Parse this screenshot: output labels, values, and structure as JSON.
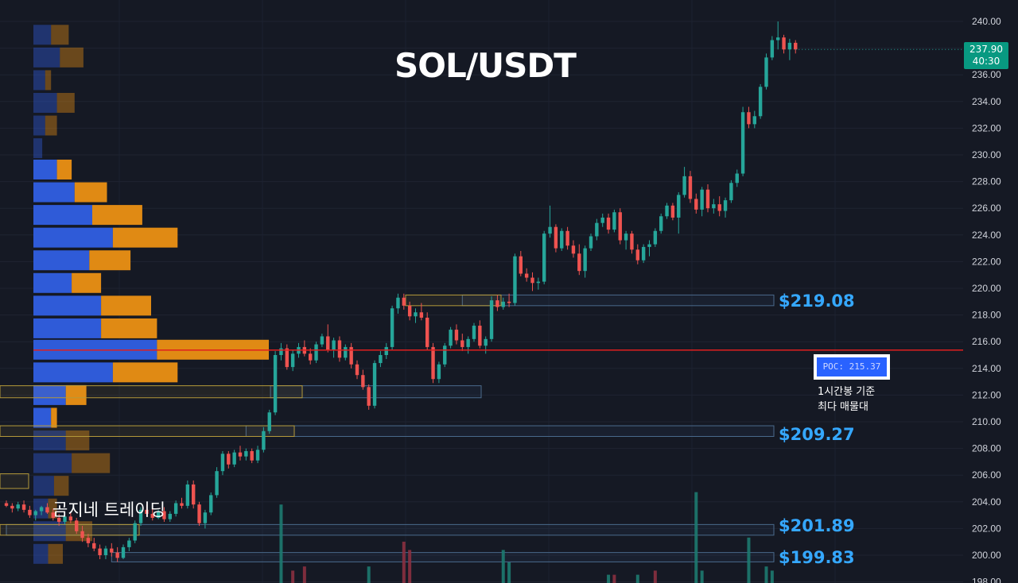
{
  "title": "SOL/USDT",
  "watermark": "곰지네 트레이딩",
  "price_tag": {
    "price": "237.90",
    "timer": "40:30"
  },
  "poc": {
    "label": "POC: 215.37",
    "caption": "1시간봉 기준\n최다 매물대"
  },
  "levels": [
    {
      "label": "$219.08"
    },
    {
      "label": "$209.27"
    },
    {
      "label": "$201.89"
    },
    {
      "label": "$199.83"
    }
  ],
  "colors": {
    "background": "#151924",
    "up": "#26a69a",
    "down": "#ef5350",
    "poc_line": "#e01e1e",
    "level_label": "#35a8ff",
    "vp_blue": "#2f5bd8",
    "vp_orange": "#e08a14",
    "axis_text": "#d1d4dc"
  },
  "chart_data": {
    "type": "candlestick",
    "title": "SOL/USDT",
    "ylim": [
      198,
      240.8
    ],
    "yticks": [
      198.0,
      200.0,
      202.0,
      204.0,
      206.0,
      208.0,
      210.0,
      212.0,
      214.0,
      216.0,
      218.0,
      220.0,
      222.0,
      224.0,
      226.0,
      228.0,
      230.0,
      232.0,
      234.0,
      236.0,
      238.0,
      240.0
    ],
    "ytick_labels": [
      "198.00",
      "200.00",
      "202.00",
      "204.00",
      "206.00",
      "208.00",
      "210.00",
      "212.00",
      "214.00",
      "216.00",
      "218.00",
      "220.00",
      "222.00",
      "224.00",
      "226.00",
      "228.00",
      "230.00",
      "232.00",
      "234.00",
      "236.00",
      "238.00",
      "240.00"
    ],
    "last_price": 237.9,
    "poc_price": 215.37,
    "levels": [
      219.08,
      209.27,
      201.89,
      199.83
    ],
    "level_zones": [
      {
        "low": 218.7,
        "high": 219.5,
        "from_candle": 78,
        "extended": true
      },
      {
        "low": 211.8,
        "high": 212.7,
        "from_candle": 46,
        "extended": false
      },
      {
        "low": 208.9,
        "high": 209.7,
        "from_candle": 41,
        "extended": true
      },
      {
        "low": 201.5,
        "high": 202.3,
        "from_candle": 0,
        "extended": true
      },
      {
        "low": 199.5,
        "high": 200.2,
        "from_candle": 18,
        "extended": true
      }
    ],
    "candles": [
      [
        203.9,
        204.1,
        203.6,
        203.7
      ],
      [
        203.7,
        203.9,
        203.2,
        203.5
      ],
      [
        203.5,
        204.0,
        203.3,
        203.8
      ],
      [
        203.8,
        204.1,
        203.2,
        203.4
      ],
      [
        203.4,
        203.7,
        202.8,
        203.0
      ],
      [
        203.0,
        203.4,
        202.6,
        203.3
      ],
      [
        203.3,
        203.7,
        203.0,
        203.6
      ],
      [
        203.6,
        203.9,
        203.1,
        203.2
      ],
      [
        203.2,
        203.5,
        202.6,
        202.8
      ],
      [
        202.8,
        203.1,
        202.2,
        202.5
      ],
      [
        202.5,
        203.0,
        202.3,
        202.9
      ],
      [
        202.9,
        203.2,
        202.4,
        202.6
      ],
      [
        202.6,
        202.8,
        201.6,
        201.8
      ],
      [
        201.8,
        202.2,
        201.0,
        201.3
      ],
      [
        201.3,
        201.6,
        200.6,
        200.9
      ],
      [
        200.9,
        201.3,
        200.3,
        200.5
      ],
      [
        200.5,
        200.8,
        199.7,
        200.0
      ],
      [
        200.0,
        200.7,
        199.7,
        200.5
      ],
      [
        200.5,
        200.9,
        199.9,
        200.2
      ],
      [
        200.2,
        200.6,
        199.5,
        199.8
      ],
      [
        199.8,
        200.8,
        199.7,
        200.6
      ],
      [
        200.6,
        201.3,
        200.3,
        201.1
      ],
      [
        201.1,
        202.6,
        200.9,
        202.4
      ],
      [
        202.4,
        203.6,
        202.2,
        203.4
      ],
      [
        203.4,
        203.8,
        202.9,
        203.1
      ],
      [
        203.1,
        203.5,
        202.6,
        202.8
      ],
      [
        202.8,
        203.4,
        202.7,
        203.3
      ],
      [
        203.3,
        203.6,
        202.5,
        202.7
      ],
      [
        202.7,
        203.3,
        202.5,
        203.1
      ],
      [
        203.1,
        204.1,
        202.9,
        203.9
      ],
      [
        203.9,
        204.3,
        203.5,
        203.7
      ],
      [
        203.7,
        205.6,
        203.5,
        205.3
      ],
      [
        205.3,
        205.6,
        203.5,
        203.8
      ],
      [
        203.8,
        204.0,
        202.2,
        202.4
      ],
      [
        202.4,
        203.4,
        202.0,
        203.2
      ],
      [
        203.2,
        204.7,
        203.0,
        204.5
      ],
      [
        204.5,
        206.6,
        204.3,
        206.3
      ],
      [
        206.3,
        207.8,
        206.0,
        207.6
      ],
      [
        207.6,
        207.8,
        206.5,
        206.8
      ],
      [
        206.8,
        207.9,
        206.6,
        207.7
      ],
      [
        207.7,
        208.2,
        207.1,
        207.4
      ],
      [
        207.4,
        208.0,
        207.1,
        207.8
      ],
      [
        207.8,
        208.0,
        206.9,
        207.1
      ],
      [
        207.1,
        208.2,
        206.9,
        207.9
      ],
      [
        207.9,
        209.6,
        207.7,
        209.3
      ],
      [
        209.3,
        210.9,
        209.1,
        210.7
      ],
      [
        210.7,
        215.3,
        210.5,
        215.0
      ],
      [
        215.0,
        215.9,
        214.6,
        215.5
      ],
      [
        215.5,
        215.8,
        213.9,
        214.1
      ],
      [
        214.1,
        215.4,
        213.8,
        215.1
      ],
      [
        215.1,
        215.9,
        214.8,
        215.6
      ],
      [
        215.6,
        216.1,
        214.9,
        215.1
      ],
      [
        215.1,
        215.5,
        214.3,
        214.6
      ],
      [
        214.6,
        216.0,
        214.4,
        215.8
      ],
      [
        215.8,
        216.6,
        215.6,
        216.4
      ],
      [
        216.4,
        217.3,
        215.2,
        215.4
      ],
      [
        215.4,
        216.3,
        214.8,
        216.1
      ],
      [
        216.1,
        216.4,
        214.5,
        214.8
      ],
      [
        214.8,
        215.8,
        214.6,
        215.6
      ],
      [
        215.6,
        215.9,
        214.0,
        214.3
      ],
      [
        214.3,
        214.6,
        213.2,
        213.5
      ],
      [
        213.5,
        213.9,
        212.4,
        212.6
      ],
      [
        212.6,
        212.8,
        210.9,
        211.2
      ],
      [
        211.2,
        214.6,
        211.0,
        214.4
      ],
      [
        214.4,
        215.3,
        214.1,
        215.0
      ],
      [
        215.0,
        215.9,
        214.7,
        215.6
      ],
      [
        215.6,
        218.7,
        215.4,
        218.5
      ],
      [
        218.5,
        219.6,
        218.1,
        219.3
      ],
      [
        219.3,
        219.6,
        218.4,
        218.7
      ],
      [
        218.7,
        219.0,
        217.6,
        217.9
      ],
      [
        217.9,
        218.5,
        217.4,
        218.2
      ],
      [
        218.2,
        218.9,
        217.6,
        217.8
      ],
      [
        217.8,
        218.2,
        215.4,
        215.6
      ],
      [
        215.6,
        215.9,
        212.9,
        213.2
      ],
      [
        213.2,
        214.5,
        212.9,
        214.3
      ],
      [
        214.3,
        215.9,
        214.1,
        215.7
      ],
      [
        215.7,
        217.1,
        215.5,
        216.9
      ],
      [
        216.9,
        217.3,
        215.8,
        216.1
      ],
      [
        216.1,
        216.6,
        215.3,
        215.6
      ],
      [
        215.6,
        216.4,
        215.1,
        216.2
      ],
      [
        216.2,
        217.4,
        216.0,
        217.2
      ],
      [
        217.2,
        217.6,
        215.5,
        215.7
      ],
      [
        215.7,
        216.4,
        215.1,
        216.2
      ],
      [
        216.2,
        219.4,
        216.0,
        219.1
      ],
      [
        219.1,
        219.5,
        218.3,
        218.6
      ],
      [
        218.6,
        219.3,
        218.4,
        219.0
      ],
      [
        219.0,
        219.6,
        218.6,
        218.9
      ],
      [
        218.9,
        222.6,
        218.7,
        222.4
      ],
      [
        222.4,
        222.8,
        220.9,
        221.1
      ],
      [
        221.1,
        221.5,
        220.5,
        220.8
      ],
      [
        220.8,
        221.2,
        219.8,
        220.4
      ],
      [
        220.4,
        220.8,
        219.9,
        220.5
      ],
      [
        220.5,
        224.3,
        220.3,
        224.1
      ],
      [
        224.1,
        226.2,
        223.8,
        224.6
      ],
      [
        224.6,
        224.8,
        222.7,
        223.0
      ],
      [
        223.0,
        224.5,
        222.8,
        224.3
      ],
      [
        224.3,
        224.6,
        222.9,
        223.2
      ],
      [
        223.2,
        223.6,
        222.3,
        222.6
      ],
      [
        222.6,
        223.3,
        221.0,
        221.3
      ],
      [
        221.3,
        223.2,
        220.8,
        223.0
      ],
      [
        223.0,
        224.1,
        222.8,
        223.9
      ],
      [
        223.9,
        225.2,
        223.6,
        224.9
      ],
      [
        224.9,
        225.6,
        224.6,
        225.3
      ],
      [
        225.3,
        225.6,
        224.1,
        224.4
      ],
      [
        224.4,
        225.9,
        224.2,
        225.7
      ],
      [
        225.7,
        226.0,
        223.3,
        223.6
      ],
      [
        223.6,
        224.3,
        222.9,
        224.1
      ],
      [
        224.1,
        224.3,
        222.6,
        222.9
      ],
      [
        222.9,
        223.3,
        221.8,
        222.1
      ],
      [
        222.1,
        223.3,
        221.9,
        223.1
      ],
      [
        223.1,
        223.6,
        222.4,
        223.3
      ],
      [
        223.3,
        224.5,
        223.1,
        224.3
      ],
      [
        224.3,
        225.6,
        224.1,
        225.4
      ],
      [
        225.4,
        226.4,
        225.2,
        226.2
      ],
      [
        226.2,
        226.4,
        225.1,
        225.3
      ],
      [
        225.3,
        227.2,
        224.1,
        227.0
      ],
      [
        227.0,
        229.1,
        226.8,
        228.4
      ],
      [
        228.4,
        228.8,
        226.4,
        226.7
      ],
      [
        226.7,
        227.1,
        225.6,
        225.9
      ],
      [
        225.9,
        227.6,
        225.4,
        227.4
      ],
      [
        227.4,
        227.8,
        225.7,
        226.0
      ],
      [
        226.0,
        226.7,
        225.6,
        226.3
      ],
      [
        226.3,
        226.9,
        225.4,
        225.8
      ],
      [
        225.8,
        226.8,
        225.3,
        226.6
      ],
      [
        226.6,
        228.1,
        226.4,
        227.9
      ],
      [
        227.9,
        228.9,
        227.6,
        228.6
      ],
      [
        228.6,
        233.6,
        228.4,
        233.2
      ],
      [
        233.2,
        233.6,
        232.0,
        232.3
      ],
      [
        232.3,
        233.3,
        232.0,
        232.9
      ],
      [
        232.9,
        235.3,
        232.7,
        235.1
      ],
      [
        235.1,
        237.6,
        234.9,
        237.3
      ],
      [
        237.3,
        238.9,
        237.1,
        238.6
      ],
      [
        238.6,
        240.0,
        237.9,
        238.8
      ],
      [
        238.8,
        239.0,
        237.6,
        237.9
      ],
      [
        237.9,
        238.7,
        237.1,
        238.4
      ],
      [
        238.4,
        238.6,
        237.6,
        237.9
      ]
    ],
    "volume_spikes": [
      {
        "candle": 47,
        "volume": 19,
        "dir": "up"
      },
      {
        "candle": 49,
        "volume": 3,
        "dir": "down"
      },
      {
        "candle": 51,
        "volume": 4,
        "dir": "down"
      },
      {
        "candle": 62,
        "volume": 4,
        "dir": "up"
      },
      {
        "candle": 68,
        "volume": 10,
        "dir": "down"
      },
      {
        "candle": 69,
        "volume": 8,
        "dir": "down"
      },
      {
        "candle": 85,
        "volume": 8,
        "dir": "up"
      },
      {
        "candle": 86,
        "volume": 5,
        "dir": "up"
      },
      {
        "candle": 103,
        "volume": 2,
        "dir": "up"
      },
      {
        "candle": 104,
        "volume": 2,
        "dir": "down"
      },
      {
        "candle": 108,
        "volume": 2,
        "dir": "up"
      },
      {
        "candle": 111,
        "volume": 3,
        "dir": "down"
      },
      {
        "candle": 118,
        "volume": 22,
        "dir": "up"
      },
      {
        "candle": 119,
        "volume": 3,
        "dir": "up"
      },
      {
        "candle": 127,
        "volume": 11,
        "dir": "up"
      },
      {
        "candle": 130,
        "volume": 4,
        "dir": "up"
      },
      {
        "candle": 131,
        "volume": 3,
        "dir": "up"
      }
    ],
    "volume_profile": [
      {
        "price": 239.0,
        "buy": 3,
        "sell": 3,
        "in_value_area": false
      },
      {
        "price": 237.3,
        "buy": 4.5,
        "sell": 4,
        "in_value_area": false
      },
      {
        "price": 235.6,
        "buy": 2,
        "sell": 1,
        "in_value_area": false
      },
      {
        "price": 233.9,
        "buy": 4,
        "sell": 3,
        "in_value_area": false
      },
      {
        "price": 232.2,
        "buy": 2,
        "sell": 2,
        "in_value_area": false
      },
      {
        "price": 230.5,
        "buy": 1.5,
        "sell": 0,
        "in_value_area": false
      },
      {
        "price": 228.9,
        "buy": 4,
        "sell": 2.5,
        "in_value_area": true
      },
      {
        "price": 227.2,
        "buy": 7,
        "sell": 5.5,
        "in_value_area": true
      },
      {
        "price": 225.5,
        "buy": 10,
        "sell": 8.5,
        "in_value_area": true
      },
      {
        "price": 223.8,
        "buy": 13.5,
        "sell": 11,
        "in_value_area": true
      },
      {
        "price": 222.1,
        "buy": 9.5,
        "sell": 7,
        "in_value_area": true
      },
      {
        "price": 220.4,
        "buy": 6.5,
        "sell": 5,
        "in_value_area": true
      },
      {
        "price": 218.7,
        "buy": 11.5,
        "sell": 8.5,
        "in_value_area": true
      },
      {
        "price": 217.0,
        "buy": 11.5,
        "sell": 9.5,
        "in_value_area": true
      },
      {
        "price": 215.4,
        "buy": 21,
        "sell": 19,
        "in_value_area": true
      },
      {
        "price": 213.7,
        "buy": 13.5,
        "sell": 11,
        "in_value_area": true
      },
      {
        "price": 212.0,
        "buy": 5.5,
        "sell": 3.5,
        "in_value_area": true
      },
      {
        "price": 210.3,
        "buy": 3,
        "sell": 1,
        "in_value_area": true
      },
      {
        "price": 208.6,
        "buy": 5.5,
        "sell": 4,
        "in_value_area": false
      },
      {
        "price": 206.9,
        "buy": 6.5,
        "sell": 6.5,
        "in_value_area": false
      },
      {
        "price": 205.2,
        "buy": 3.5,
        "sell": 2.5,
        "in_value_area": false
      },
      {
        "price": 203.5,
        "buy": 2.5,
        "sell": 1.5,
        "in_value_area": false
      },
      {
        "price": 201.8,
        "buy": 5.5,
        "sell": 4.5,
        "in_value_area": false
      },
      {
        "price": 200.1,
        "buy": 2.5,
        "sell": 2.5,
        "in_value_area": false
      }
    ]
  }
}
